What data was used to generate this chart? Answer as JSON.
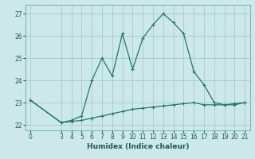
{
  "xlabel": "Humidex (Indice chaleur)",
  "bg_color": "#cce8e8",
  "grid_color": "#aacfcf",
  "line_color": "#1a7a6e",
  "x_upper_line": [
    0,
    3,
    4,
    5,
    6,
    7,
    8,
    9,
    10,
    11,
    12,
    13,
    14,
    15,
    16,
    17,
    18,
    19,
    20,
    21
  ],
  "y_upper_line": [
    23.1,
    22.1,
    22.2,
    22.4,
    24.0,
    25.0,
    24.2,
    26.1,
    24.5,
    25.9,
    26.5,
    27.0,
    26.6,
    26.1,
    24.4,
    23.8,
    23.0,
    22.9,
    22.9,
    23.0
  ],
  "x_lower_line": [
    0,
    3,
    4,
    5,
    6,
    7,
    8,
    9,
    10,
    11,
    12,
    13,
    14,
    15,
    16,
    17,
    18,
    19,
    20,
    21
  ],
  "y_lower_line": [
    23.1,
    22.1,
    22.15,
    22.2,
    22.3,
    22.4,
    22.5,
    22.6,
    22.7,
    22.75,
    22.8,
    22.85,
    22.9,
    22.95,
    23.0,
    22.9,
    22.9,
    22.9,
    22.95,
    23.0
  ],
  "xlim": [
    -0.5,
    21.5
  ],
  "ylim": [
    21.75,
    27.4
  ],
  "yticks": [
    22,
    23,
    24,
    25,
    26,
    27
  ],
  "xticks": [
    0,
    3,
    4,
    5,
    6,
    7,
    8,
    9,
    10,
    11,
    12,
    13,
    14,
    15,
    16,
    17,
    18,
    19,
    20,
    21
  ]
}
